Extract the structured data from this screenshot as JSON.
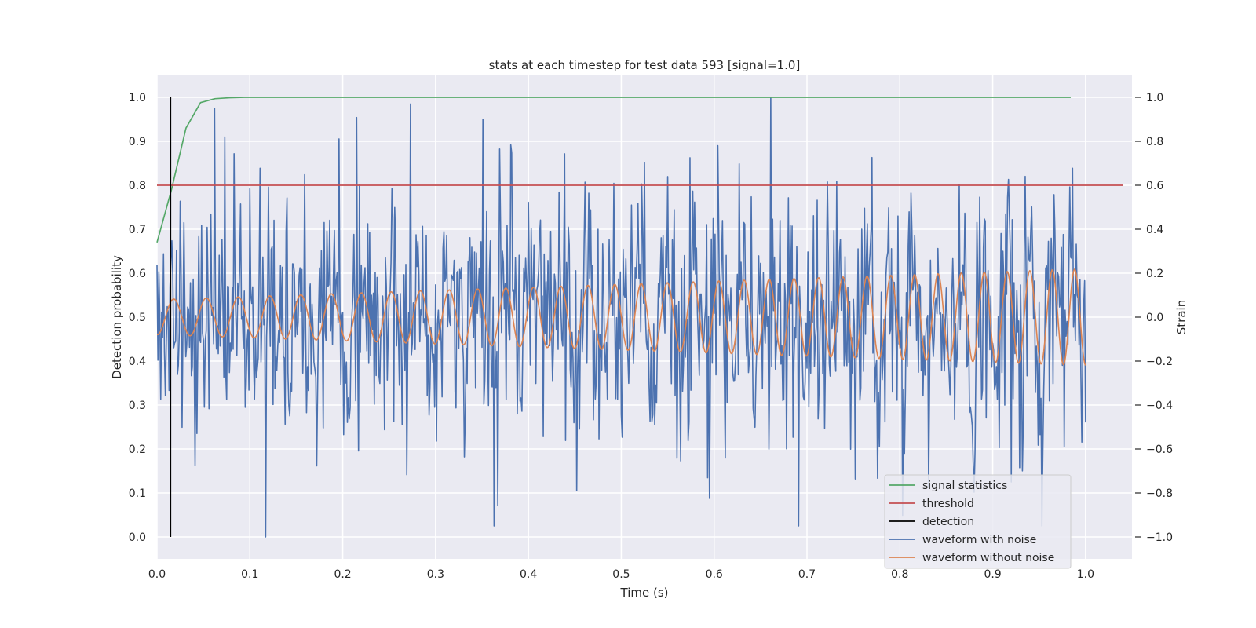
{
  "chart_data": {
    "type": "line",
    "title": "stats at each timestep for test data 593 [signal=1.0]",
    "xlabel": "Time (s)",
    "ylabel": "Detection probability",
    "y2label": "Strain",
    "xlim": [
      0.0,
      1.05
    ],
    "ylim": [
      -0.05,
      1.05
    ],
    "y2lim": [
      -1.1,
      1.1
    ],
    "xticks": [
      "0.0",
      "0.1",
      "0.2",
      "0.3",
      "0.4",
      "0.5",
      "0.6",
      "0.7",
      "0.8",
      "0.9",
      "1.0"
    ],
    "yticks": [
      "0.0",
      "0.1",
      "0.2",
      "0.3",
      "0.4",
      "0.5",
      "0.6",
      "0.7",
      "0.8",
      "0.9",
      "1.0"
    ],
    "y2ticks": [
      "−1.0",
      "−0.8",
      "−0.6",
      "−0.4",
      "−0.2",
      "0.0",
      "0.2",
      "0.4",
      "0.6",
      "0.8",
      "1.0"
    ],
    "grid": true,
    "legend_position": "lower-right",
    "colors": {
      "signal_statistics": "#55a868",
      "threshold": "#c44e52",
      "detection": "#000000",
      "waveform_with_noise": "#4c72b0",
      "waveform_without_noise": "#dd8452",
      "plot_background": "#eaeaf2",
      "grid": "#ffffff"
    },
    "series": [
      {
        "name": "signal statistics",
        "axis": "left",
        "x": [
          0.0,
          0.0156,
          0.0312,
          0.0469,
          0.0625,
          0.0781,
          0.0938,
          0.125,
          0.25,
          0.5,
          0.75,
          0.984
        ],
        "y": [
          0.67,
          0.79,
          0.93,
          0.988,
          0.997,
          0.999,
          1.0,
          1.0,
          1.0,
          1.0,
          1.0,
          1.0
        ]
      },
      {
        "name": "threshold",
        "axis": "left",
        "x": [
          0.0,
          1.04
        ],
        "y": [
          0.8,
          0.8
        ]
      },
      {
        "name": "detection",
        "axis": "left",
        "x": [
          0.0146,
          0.0146
        ],
        "y": [
          0.0,
          1.0
        ]
      },
      {
        "name": "waveform with noise",
        "axis": "right",
        "generated": "noisy",
        "samples": 1001,
        "x_range": [
          0.0,
          1.0
        ],
        "noise_std": 0.28,
        "seed": 593,
        "spikes": [
          [
            0.117,
            -1.0
          ],
          [
            0.273,
            0.97
          ],
          [
            0.351,
            0.9
          ],
          [
            0.661,
            1.0
          ],
          [
            0.073,
            0.82
          ],
          [
            0.604,
            0.78
          ],
          [
            0.92,
            -0.75
          ],
          [
            0.452,
            -0.79
          ]
        ]
      },
      {
        "name": "waveform without noise",
        "axis": "right",
        "generated": "chirp",
        "samples": 1001,
        "x_range": [
          0.0,
          1.0
        ],
        "amp_start": 0.08,
        "amp_end": 0.22,
        "freq_start": 28,
        "freq_end": 42,
        "phase": -1.6
      }
    ]
  }
}
